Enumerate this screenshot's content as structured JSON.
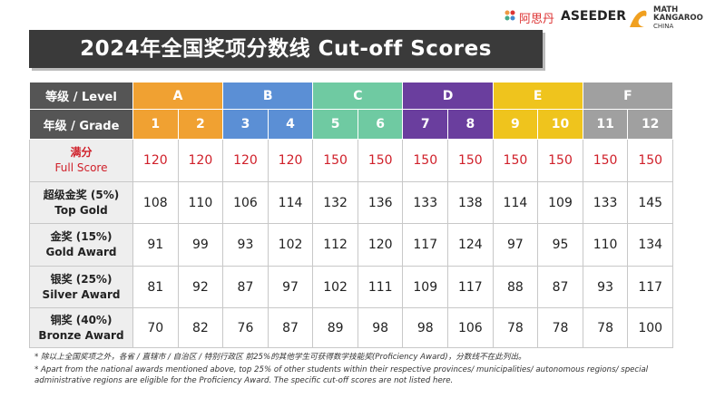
{
  "logos": {
    "brand_cn": "阿思丹",
    "brand_en": "ASEEDER",
    "partner": [
      "MATH",
      "KANGAROO",
      "CHINA"
    ]
  },
  "title": "2024年全国奖项分数线 Cut-off Scores",
  "table": {
    "level_header": "等级 / Level",
    "levels": [
      {
        "label": "A",
        "color": "#f0a132"
      },
      {
        "label": "B",
        "color": "#5b8fd5"
      },
      {
        "label": "C",
        "color": "#6fcaa2"
      },
      {
        "label": "D",
        "color": "#6a3e9e"
      },
      {
        "label": "E",
        "color": "#efc41d"
      },
      {
        "label": "F",
        "color": "#a0a0a0"
      }
    ],
    "grade_header": "年级 / Grade",
    "grades": [
      1,
      2,
      3,
      4,
      5,
      6,
      7,
      8,
      9,
      10,
      11,
      12
    ],
    "rows": [
      {
        "label_cn": "满分",
        "label_en": "Full Score",
        "values": [
          120,
          120,
          120,
          120,
          150,
          150,
          150,
          150,
          150,
          150,
          150,
          150
        ]
      },
      {
        "label_cn": "超级金奖 (5%)",
        "label_en": "Top Gold",
        "values": [
          108,
          110,
          106,
          114,
          132,
          136,
          133,
          138,
          114,
          109,
          133,
          145
        ]
      },
      {
        "label_cn": "金奖 (15%)",
        "label_en": "Gold Award",
        "values": [
          91,
          99,
          93,
          102,
          112,
          120,
          117,
          124,
          97,
          95,
          110,
          134
        ]
      },
      {
        "label_cn": "银奖 (25%)",
        "label_en": "Silver Award",
        "values": [
          81,
          92,
          87,
          97,
          102,
          111,
          109,
          117,
          88,
          87,
          93,
          117
        ]
      },
      {
        "label_cn": "铜奖 (40%)",
        "label_en": "Bronze Award",
        "values": [
          70,
          82,
          76,
          87,
          89,
          98,
          98,
          106,
          78,
          78,
          78,
          100
        ]
      }
    ]
  },
  "notes": [
    "* 除以上全国奖项之外，各省 / 直辖市 / 自治区 / 特别行政区 前25%的其他学生可获得数学技能奖(Proficiency Award)，分数线不在此列出。",
    "* Apart from the national awards mentioned above, top 25% of other students within their respective provinces/ municipalities/ autonomous regions/ special administrative regions are eligible for the Proficiency Award. The specific cut-off scores are not listed here."
  ]
}
